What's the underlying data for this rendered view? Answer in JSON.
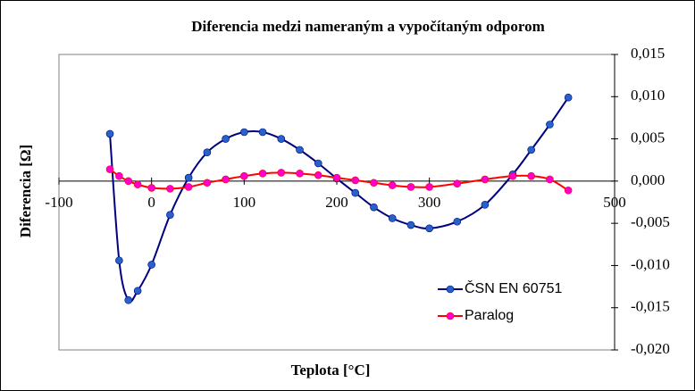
{
  "chart_data": {
    "type": "line",
    "title": "Diferencia medzi nameraným a vypočítaným odporom",
    "x_label": "Teplota [°C]",
    "y_label": "Diferencia [Ω]",
    "xlim": [
      -100,
      500
    ],
    "xticks": [
      -100,
      0,
      100,
      200,
      300,
      500
    ],
    "ylim": [
      -0.02,
      0.015
    ],
    "yticks": [
      {
        "value": 0.015,
        "label": "0,015"
      },
      {
        "value": 0.01,
        "label": "0,010"
      },
      {
        "value": 0.005,
        "label": "0,005"
      },
      {
        "value": 0,
        "label": "0,000"
      },
      {
        "value": -0.005,
        "label": "-0,005"
      },
      {
        "value": -0.01,
        "label": "-0,010"
      },
      {
        "value": -0.015,
        "label": "-0,015"
      },
      {
        "value": -0.02,
        "label": "-0,020"
      }
    ],
    "series": [
      {
        "name": "ČSN EN 60751",
        "color": "#000080",
        "marker_color": "#2563c8",
        "x": [
          -45,
          -35,
          -25,
          -15,
          0,
          20,
          40,
          60,
          80,
          100,
          120,
          140,
          160,
          180,
          200,
          220,
          240,
          260,
          280,
          300,
          330,
          360,
          390,
          410,
          430,
          450
        ],
        "values": [
          0.0056,
          -0.0094,
          -0.0141,
          -0.013,
          -0.0099,
          -0.004,
          0.0004,
          0.0034,
          0.005,
          0.0058,
          0.0058,
          0.005,
          0.0037,
          0.0021,
          0.0003,
          -0.0014,
          -0.0031,
          -0.0044,
          -0.0052,
          -0.0056,
          -0.0048,
          -0.0028,
          0.0008,
          0.0037,
          0.0067,
          0.0099
        ]
      },
      {
        "name": "Paralog",
        "color": "#ff0000",
        "marker_color": "#ff00cc",
        "x": [
          -45,
          -35,
          -25,
          -15,
          0,
          20,
          40,
          60,
          80,
          100,
          120,
          140,
          160,
          180,
          200,
          220,
          240,
          260,
          280,
          300,
          330,
          360,
          390,
          410,
          430,
          450
        ],
        "values": [
          0.0014,
          0.0006,
          0.0,
          -0.0004,
          -0.0008,
          -0.0009,
          -0.0007,
          -0.0002,
          0.0002,
          0.0006,
          0.0009,
          0.001,
          0.0009,
          0.0007,
          0.0004,
          0.0001,
          -0.0002,
          -0.0005,
          -0.0007,
          -0.0007,
          -0.0003,
          0.0002,
          0.0006,
          0.0006,
          0.0002,
          -0.0011
        ]
      }
    ]
  }
}
